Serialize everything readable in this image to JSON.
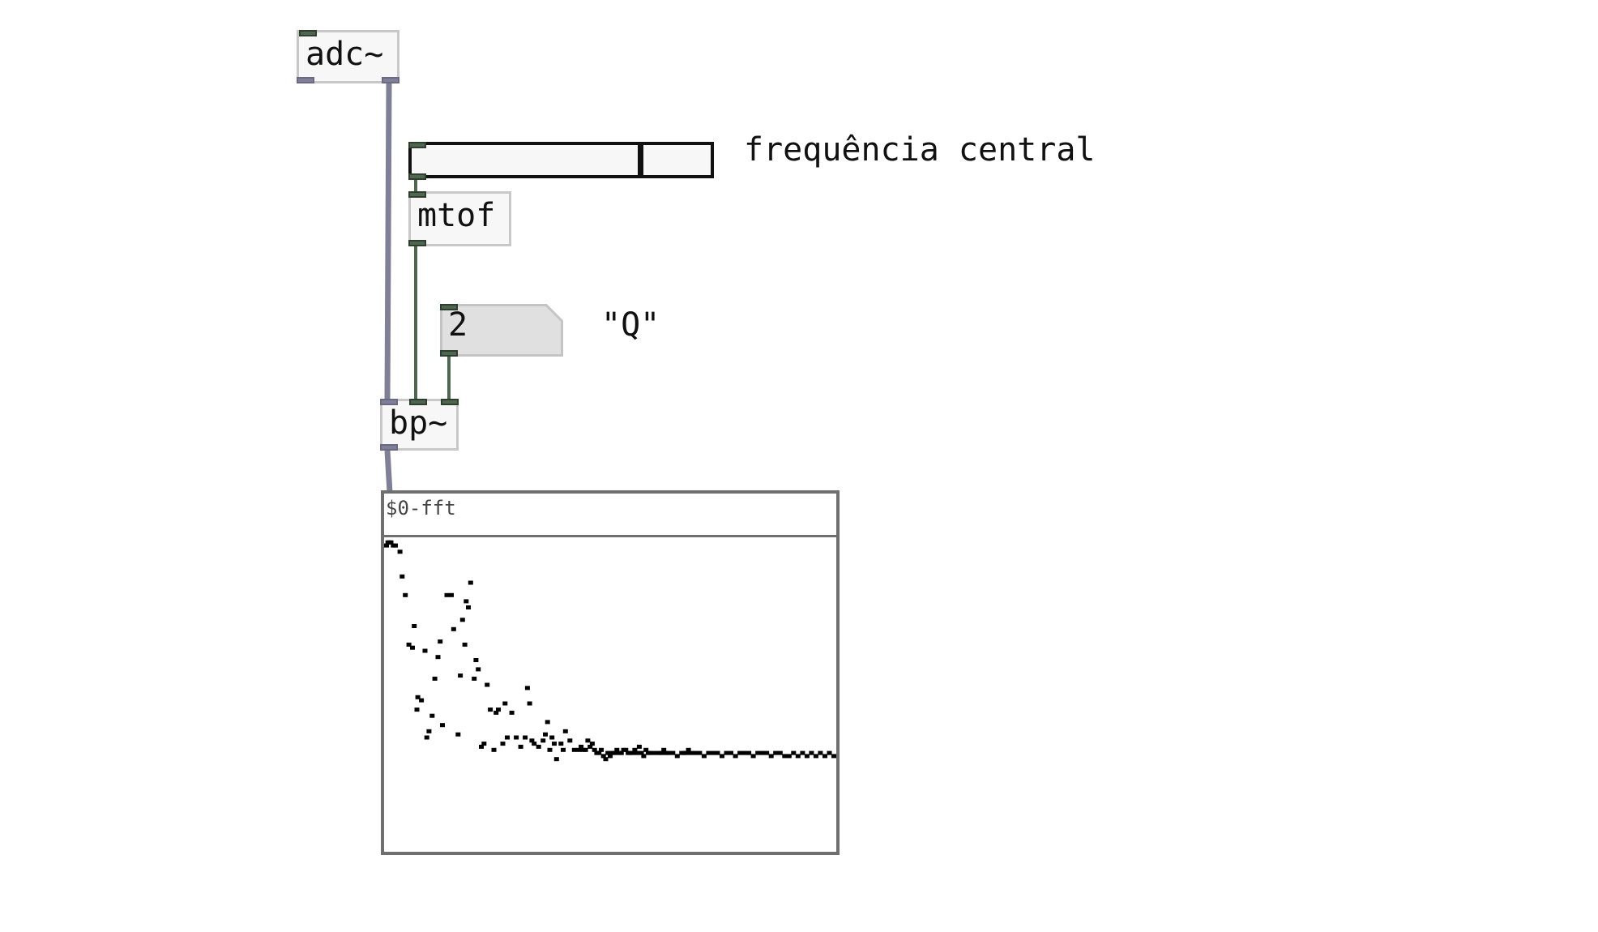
{
  "objects": {
    "adc": "adc~",
    "mtof": "mtof",
    "bp": "bp~"
  },
  "comments": {
    "center_freq": "frequência central",
    "q": "\"Q\""
  },
  "slider": {
    "value_fraction": 0.77
  },
  "number_box": {
    "value": "2"
  },
  "array": {
    "name": "$0-fft",
    "points": [
      [
        0.0,
        0.98
      ],
      [
        0.003,
        0.99
      ],
      [
        0.006,
        0.99
      ],
      [
        0.01,
        0.99
      ],
      [
        0.015,
        0.98
      ],
      [
        0.02,
        0.98
      ],
      [
        0.03,
        0.96
      ],
      [
        0.035,
        0.88
      ],
      [
        0.042,
        0.82
      ],
      [
        0.05,
        0.66
      ],
      [
        0.058,
        0.65
      ],
      [
        0.062,
        0.72
      ],
      [
        0.068,
        0.45
      ],
      [
        0.07,
        0.49
      ],
      [
        0.078,
        0.48
      ],
      [
        0.086,
        0.64
      ],
      [
        0.09,
        0.36
      ],
      [
        0.095,
        0.38
      ],
      [
        0.102,
        0.43
      ],
      [
        0.108,
        0.55
      ],
      [
        0.115,
        0.62
      ],
      [
        0.12,
        0.67
      ],
      [
        0.125,
        0.4
      ],
      [
        0.135,
        0.82
      ],
      [
        0.145,
        0.82
      ],
      [
        0.15,
        0.71
      ],
      [
        0.16,
        0.37
      ],
      [
        0.165,
        0.56
      ],
      [
        0.17,
        0.74
      ],
      [
        0.175,
        0.66
      ],
      [
        0.178,
        0.8
      ],
      [
        0.183,
        0.78
      ],
      [
        0.188,
        0.86
      ],
      [
        0.196,
        0.55
      ],
      [
        0.2,
        0.61
      ],
      [
        0.205,
        0.58
      ],
      [
        0.212,
        0.33
      ],
      [
        0.218,
        0.34
      ],
      [
        0.225,
        0.53
      ],
      [
        0.232,
        0.45
      ],
      [
        0.24,
        0.32
      ],
      [
        0.245,
        0.44
      ],
      [
        0.25,
        0.45
      ],
      [
        0.26,
        0.34
      ],
      [
        0.265,
        0.47
      ],
      [
        0.27,
        0.36
      ],
      [
        0.28,
        0.44
      ],
      [
        0.29,
        0.36
      ],
      [
        0.3,
        0.33
      ],
      [
        0.31,
        0.36
      ],
      [
        0.315,
        0.52
      ],
      [
        0.32,
        0.47
      ],
      [
        0.325,
        0.35
      ],
      [
        0.33,
        0.34
      ],
      [
        0.34,
        0.33
      ],
      [
        0.35,
        0.35
      ],
      [
        0.355,
        0.37
      ],
      [
        0.36,
        0.41
      ],
      [
        0.365,
        0.32
      ],
      [
        0.37,
        0.36
      ],
      [
        0.375,
        0.34
      ],
      [
        0.38,
        0.29
      ],
      [
        0.39,
        0.34
      ],
      [
        0.395,
        0.32
      ],
      [
        0.4,
        0.38
      ],
      [
        0.41,
        0.35
      ],
      [
        0.42,
        0.32
      ],
      [
        0.43,
        0.32
      ],
      [
        0.435,
        0.33
      ],
      [
        0.44,
        0.32
      ],
      [
        0.445,
        0.32
      ],
      [
        0.45,
        0.35
      ],
      [
        0.455,
        0.33
      ],
      [
        0.46,
        0.34
      ],
      [
        0.465,
        0.32
      ],
      [
        0.47,
        0.31
      ],
      [
        0.475,
        0.31
      ],
      [
        0.48,
        0.32
      ],
      [
        0.485,
        0.3
      ],
      [
        0.49,
        0.29
      ],
      [
        0.495,
        0.31
      ],
      [
        0.5,
        0.3
      ],
      [
        0.505,
        0.31
      ],
      [
        0.51,
        0.31
      ],
      [
        0.515,
        0.32
      ],
      [
        0.52,
        0.31
      ],
      [
        0.525,
        0.31
      ],
      [
        0.53,
        0.32
      ],
      [
        0.535,
        0.32
      ],
      [
        0.54,
        0.31
      ],
      [
        0.545,
        0.31
      ],
      [
        0.55,
        0.31
      ],
      [
        0.555,
        0.32
      ],
      [
        0.56,
        0.31
      ],
      [
        0.565,
        0.33
      ],
      [
        0.57,
        0.31
      ],
      [
        0.575,
        0.3
      ],
      [
        0.58,
        0.32
      ],
      [
        0.585,
        0.31
      ],
      [
        0.59,
        0.31
      ],
      [
        0.6,
        0.31
      ],
      [
        0.61,
        0.31
      ],
      [
        0.615,
        0.31
      ],
      [
        0.62,
        0.32
      ],
      [
        0.625,
        0.31
      ],
      [
        0.63,
        0.31
      ],
      [
        0.64,
        0.31
      ],
      [
        0.65,
        0.3
      ],
      [
        0.66,
        0.31
      ],
      [
        0.665,
        0.31
      ],
      [
        0.67,
        0.31
      ],
      [
        0.675,
        0.32
      ],
      [
        0.68,
        0.31
      ],
      [
        0.69,
        0.31
      ],
      [
        0.7,
        0.31
      ],
      [
        0.71,
        0.3
      ],
      [
        0.72,
        0.31
      ],
      [
        0.73,
        0.31
      ],
      [
        0.74,
        0.31
      ],
      [
        0.75,
        0.3
      ],
      [
        0.76,
        0.31
      ],
      [
        0.77,
        0.31
      ],
      [
        0.78,
        0.3
      ],
      [
        0.79,
        0.31
      ],
      [
        0.8,
        0.31
      ],
      [
        0.81,
        0.31
      ],
      [
        0.82,
        0.3
      ],
      [
        0.83,
        0.31
      ],
      [
        0.84,
        0.31
      ],
      [
        0.85,
        0.31
      ],
      [
        0.86,
        0.3
      ],
      [
        0.87,
        0.31
      ],
      [
        0.88,
        0.31
      ],
      [
        0.89,
        0.3
      ],
      [
        0.9,
        0.3
      ],
      [
        0.91,
        0.31
      ],
      [
        0.92,
        0.3
      ],
      [
        0.93,
        0.31
      ],
      [
        0.94,
        0.3
      ],
      [
        0.95,
        0.31
      ],
      [
        0.96,
        0.3
      ],
      [
        0.97,
        0.31
      ],
      [
        0.98,
        0.3
      ],
      [
        0.99,
        0.31
      ],
      [
        1.0,
        0.3
      ]
    ]
  }
}
